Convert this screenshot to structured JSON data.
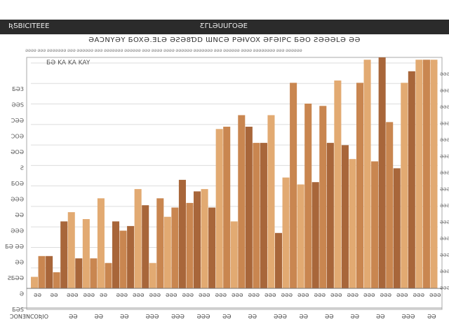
{
  "header": {
    "left_label": "ƦƼBICITEEE",
    "center_label": "ƸΓLƏUUΓOƏE"
  },
  "chart_data": {
    "type": "bar",
    "title": "ƏAƆNYƏY  ƂOXƏ.ƎLƏ  ƏƧƏ8ƊD  ƜNCƏ  PƏƗVOX   ƏFƏIPC  ƂƏO  ƧƏƏƏLƏ ƏƏ",
    "subtitle": "ƏƏƏƏ ƏƏƏ ƏƏƏƏƏƏƏ ƏƏƏ ƏƏƏƏƏƏ ƏƏƏ ƏƏƏƏƏƏƏ ƏƏƏƏƏƏ ƏƏƏ ƏƏƏƏ ƏƏƏƏ ƏƏƏƏƏƏ ƏƏƏƏƏƏƏ ƏƏƏ ƏƏƏƏƏƏ ƏƏƏƏ ƏƏƏƏƏƏƏƏ ƏƏƏ ƏƏƏƏƏƏ",
    "legend": "ƂƏ KA KA KAY",
    "xlabel": "ƆONƎNCOƦIO",
    "ylim": [
      0,
      100
    ],
    "y_ticks_left": [
      "ƂƏ3",
      "ƏƏS",
      "ƆƏƏ",
      "ƆOƏ",
      "ƏOƏ",
      "Ƨ",
      "ƂOƏ",
      "ƏƏƏ",
      "ƏƏ",
      "ƏƏƏ",
      "ƂƏ ƏƏ",
      "ƏƏ",
      "ƧƂƏƏ",
      "Ə",
      "ƂƏS"
    ],
    "y_ticks_right": [
      "ƏƏƏ",
      "ƏƏƏ",
      "ƏƏƏ",
      "ƏƏƏ",
      "ƏƏƏ",
      "ƏƏƏ",
      "ƏƏƏ",
      "ƏƏƏ",
      "ƏƏƏ",
      "ƏƏƏ",
      "ƏƏƏ",
      "ƏƏƏ",
      "ƏƏƏ",
      "ƏƏƏ"
    ],
    "x_ticks": [
      "ƏƏ",
      "ƏƏ",
      "ƏƏƏ",
      "ƏƏƏ",
      "ƏƏ",
      "ƏƏƏ",
      "ƏƏƏ",
      "ƏƏƏ",
      "ƏƏƏ",
      "ƏƏƏ",
      "ƏƏƏ",
      "ƏƏƏ",
      "ƏƏƏ",
      "ƏƏƏ",
      "ƏƏƏ",
      "ƏƏƏ",
      "ƏƏƏ",
      "ƏƏƏ",
      "ƏƏƏ",
      "ƏƏƏ",
      "ƏƏƏ",
      "ƏƏƏ",
      "ƏƏƏ",
      "ƏƏƏ",
      "ƏƏƏ"
    ],
    "footer_ticks": [
      "ƏƏ",
      "ƏƏ",
      "ƏƏ",
      "ƏƏƏ",
      "ƏƏƏ",
      "ƏƏƏ",
      "ƏƏ",
      "ƏƏ",
      "ƏƏƏ",
      "ƏƏ",
      "ƏƏ",
      "ƏƏ",
      "ƏƏ",
      "ƏƏƏ",
      "ƏƏ"
    ],
    "values": [
      5,
      14,
      14,
      7,
      29,
      33,
      13,
      30,
      13,
      39,
      11,
      29,
      25,
      27,
      43,
      36,
      11,
      39,
      31,
      35,
      47,
      37,
      42,
      43,
      35,
      69,
      70,
      29,
      75,
      70,
      63,
      63,
      75,
      24,
      48,
      89,
      45,
      80,
      46,
      79,
      63,
      90,
      62,
      56,
      89,
      99,
      55,
      100,
      72,
      52,
      89,
      94,
      99,
      99,
      99
    ],
    "colors": [
      "#e2aa72",
      "#c98650",
      "#a8663a"
    ]
  }
}
